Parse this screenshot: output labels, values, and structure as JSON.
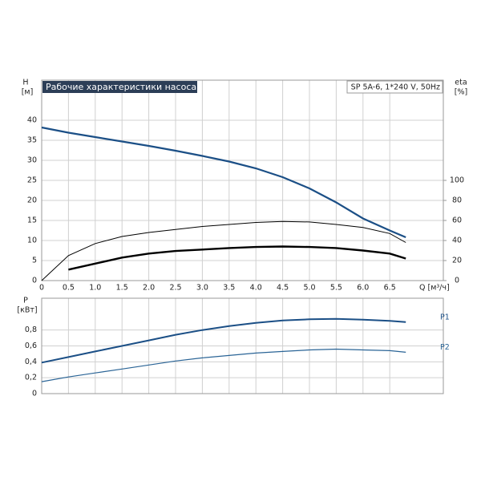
{
  "chart_data": [
    {
      "type": "line",
      "title": "Рабочие характеристики насоса",
      "model": "SP 5A-6, 1*240 V, 50Hz",
      "ylabel": "H",
      "yunit": "[м]",
      "y2label": "eta",
      "y2unit": "[%]",
      "xlabel": "Q [м³/ч]",
      "x": [
        0,
        0.5,
        1,
        1.5,
        2,
        2.5,
        3,
        3.5,
        4,
        4.5,
        5,
        5.5,
        6,
        6.5,
        6.8
      ],
      "xlim": [
        0,
        7.5
      ],
      "xticks": [
        0,
        0.5,
        {
          "value": 1,
          "label": "1.0"
        },
        1.5,
        {
          "value": 2,
          "label": "2.0"
        },
        2.5,
        {
          "value": 3,
          "label": "3.0"
        },
        3.5,
        {
          "value": 4,
          "label": "4.0"
        },
        4.5,
        {
          "value": 5,
          "label": "5.0"
        },
        5.5,
        {
          "value": 6,
          "label": "6.0"
        },
        6.5
      ],
      "ylim": [
        0,
        50
      ],
      "yticks": [
        0,
        5,
        10,
        15,
        20,
        25,
        30,
        35,
        40
      ],
      "y2lim": [
        0,
        200
      ],
      "y2ticks": [
        0,
        20,
        40,
        60,
        80,
        100
      ],
      "grid": true,
      "series": [
        {
          "color": "#1b4f86",
          "width": 2.2,
          "values": [
            38.2,
            36.9,
            35.8,
            34.7,
            33.6,
            32.4,
            31.1,
            29.7,
            28,
            25.8,
            23,
            19.5,
            15.5,
            12.5,
            10.8
          ]
        },
        {
          "color": "#000000",
          "width": 1,
          "axis": "y2",
          "values": [
            0,
            25,
            37,
            44,
            48,
            51,
            54,
            56,
            58,
            59,
            58.5,
            56,
            53,
            47,
            38
          ]
        },
        {
          "color": "#000000",
          "width": 2.4,
          "axis": "y2",
          "values": [
            null,
            11,
            17,
            23,
            27,
            29.5,
            31,
            32.5,
            33.5,
            34,
            33.5,
            32.5,
            30,
            27,
            22
          ]
        }
      ]
    },
    {
      "type": "line",
      "ylabel": "P",
      "yunit": "[кВт]",
      "x": [
        0,
        0.5,
        1,
        1.5,
        2,
        2.5,
        3,
        3.5,
        4,
        4.5,
        5,
        5.5,
        6,
        6.5,
        6.8
      ],
      "xlim": [
        0,
        7.5
      ],
      "ylim": [
        0,
        1.2
      ],
      "yticks": [
        0,
        {
          "value": 0.2,
          "label": "0,2"
        },
        {
          "value": 0.4,
          "label": "0,4"
        },
        {
          "value": 0.6,
          "label": "0,6"
        },
        {
          "value": 0.8,
          "label": "0,8"
        }
      ],
      "grid": true,
      "series": [
        {
          "name": "P1",
          "color": "#1b4f86",
          "width": 2,
          "values": [
            0.39,
            0.46,
            0.53,
            0.6,
            0.67,
            0.74,
            0.8,
            0.85,
            0.89,
            0.92,
            0.935,
            0.94,
            0.93,
            0.915,
            0.9
          ]
        },
        {
          "name": "P2",
          "color": "#2a6496",
          "width": 1.2,
          "values": [
            0.15,
            0.21,
            0.26,
            0.31,
            0.36,
            0.41,
            0.45,
            0.48,
            0.51,
            0.53,
            0.55,
            0.56,
            0.55,
            0.54,
            0.52
          ]
        }
      ]
    }
  ]
}
